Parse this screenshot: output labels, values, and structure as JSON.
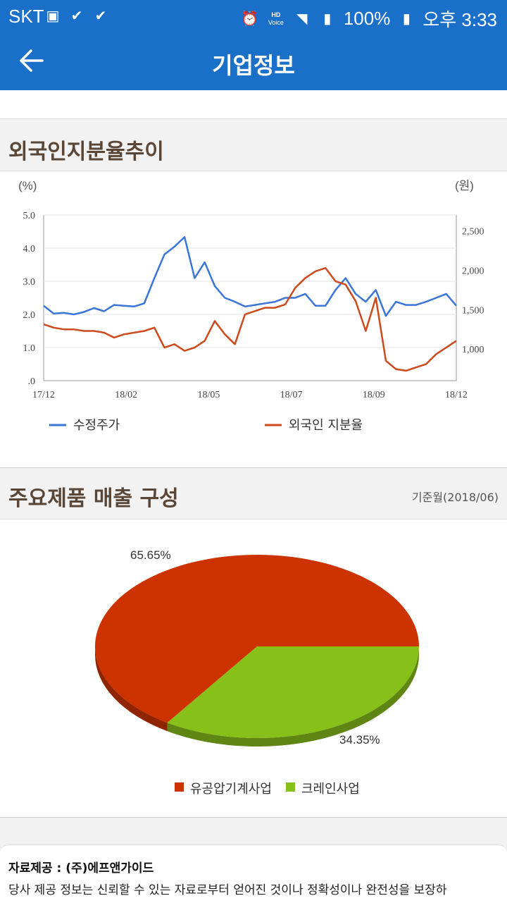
{
  "status": {
    "carrier": "SKT",
    "battery": "100%",
    "time": "오후 3:33",
    "hd_top": "HD",
    "hd_bottom": "Voice"
  },
  "appbar": {
    "title": "기업정보"
  },
  "foreign": {
    "title": "외국인지분율추이",
    "left_unit": "(%)",
    "right_unit": "(원)",
    "chart_data": {
      "type": "line",
      "left_axis": {
        "ticks": [
          "5.0",
          "4.0",
          "3.0",
          "2.0",
          "1.0",
          ".0"
        ],
        "range": [
          0,
          5
        ]
      },
      "right_axis": {
        "ticks": [
          "2,500",
          "2,000",
          "1,500",
          "1,000"
        ],
        "range": [
          600,
          2700
        ]
      },
      "x_ticks": [
        "17/12",
        "18/02",
        "18/05",
        "18/07",
        "18/09",
        "18/12"
      ],
      "series": [
        {
          "name": "수정주가",
          "color": "#3a75d8",
          "axis": "right",
          "values": [
            1550,
            1450,
            1460,
            1440,
            1470,
            1520,
            1480,
            1560,
            1550,
            1540,
            1580,
            1900,
            2200,
            2300,
            2420,
            1900,
            2100,
            1800,
            1650,
            1600,
            1540,
            1560,
            1580,
            1600,
            1650,
            1650,
            1700,
            1550,
            1550,
            1750,
            1900,
            1700,
            1600,
            1750,
            1420,
            1600,
            1560,
            1560,
            1600,
            1650,
            1700,
            1550
          ]
        },
        {
          "name": "외국인 지분율",
          "color": "#cc4a1c",
          "axis": "left",
          "values": [
            1.7,
            1.6,
            1.55,
            1.55,
            1.5,
            1.5,
            1.45,
            1.3,
            1.4,
            1.45,
            1.5,
            1.6,
            1.0,
            1.1,
            0.9,
            1.0,
            1.2,
            1.8,
            1.4,
            1.1,
            2.0,
            2.1,
            2.2,
            2.2,
            2.3,
            2.8,
            3.1,
            3.3,
            3.4,
            3.0,
            2.9,
            2.4,
            1.5,
            2.5,
            0.6,
            0.35,
            0.3,
            0.4,
            0.5,
            0.8,
            1.0,
            1.2
          ]
        }
      ]
    }
  },
  "products": {
    "title": "주요제품 매출 구성",
    "basis": "기준월(2018/06)",
    "chart_data": {
      "type": "pie",
      "slices": [
        {
          "label": "유공압기계사업",
          "value": 65.65,
          "display": "65.65%",
          "color": "#cc3300"
        },
        {
          "label": "크레인사업",
          "value": 34.35,
          "display": "34.35%",
          "color": "#88c01a"
        }
      ]
    }
  },
  "footer": {
    "provider": "자료제공 : (주)에프앤가이드",
    "notice": "당사 제공 정보는 신뢰할 수 있는 자료로부터 얻어진 것이나 정확성이나 완전성을 보장하"
  }
}
